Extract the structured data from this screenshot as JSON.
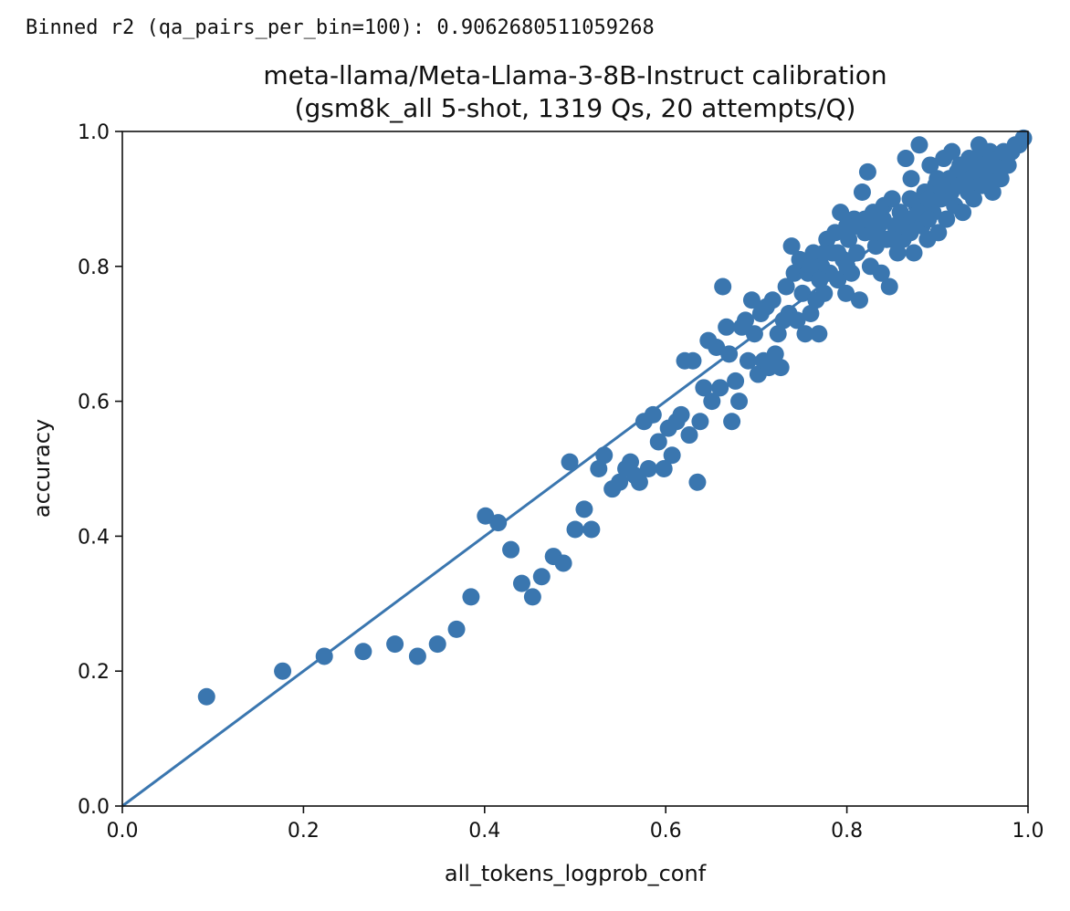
{
  "output": {
    "text": "Binned r2 (qa_pairs_per_bin=100): 0.9062680511059268"
  },
  "chart_data": {
    "type": "scatter",
    "title_line1": "meta-llama/Meta-Llama-3-8B-Instruct calibration",
    "title_line2": "(gsm8k_all 5-shot, 1319 Qs, 20 attempts/Q)",
    "xlabel": "all_tokens_logprob_conf",
    "ylabel": "accuracy",
    "xlim": [
      0.0,
      1.0
    ],
    "ylim": [
      0.0,
      1.0
    ],
    "xticks": [
      "0.0",
      "0.2",
      "0.4",
      "0.6",
      "0.8",
      "1.0"
    ],
    "yticks": [
      "0.0",
      "0.2",
      "0.4",
      "0.6",
      "0.8",
      "1.0"
    ],
    "grid": false,
    "color": "#3a76af",
    "reference_line": {
      "x": [
        0.0,
        1.0
      ],
      "y": [
        0.0,
        1.0
      ]
    },
    "points": [
      [
        0.093,
        0.162
      ],
      [
        0.177,
        0.2
      ],
      [
        0.223,
        0.222
      ],
      [
        0.266,
        0.229
      ],
      [
        0.301,
        0.24
      ],
      [
        0.326,
        0.222
      ],
      [
        0.348,
        0.24
      ],
      [
        0.369,
        0.262
      ],
      [
        0.385,
        0.31
      ],
      [
        0.401,
        0.43
      ],
      [
        0.415,
        0.42
      ],
      [
        0.429,
        0.38
      ],
      [
        0.441,
        0.33
      ],
      [
        0.453,
        0.31
      ],
      [
        0.463,
        0.34
      ],
      [
        0.476,
        0.37
      ],
      [
        0.487,
        0.36
      ],
      [
        0.494,
        0.51
      ],
      [
        0.5,
        0.41
      ],
      [
        0.51,
        0.44
      ],
      [
        0.518,
        0.41
      ],
      [
        0.526,
        0.5
      ],
      [
        0.532,
        0.52
      ],
      [
        0.541,
        0.47
      ],
      [
        0.549,
        0.48
      ],
      [
        0.556,
        0.5
      ],
      [
        0.561,
        0.51
      ],
      [
        0.566,
        0.49
      ],
      [
        0.571,
        0.48
      ],
      [
        0.576,
        0.57
      ],
      [
        0.581,
        0.5
      ],
      [
        0.586,
        0.58
      ],
      [
        0.592,
        0.54
      ],
      [
        0.598,
        0.5
      ],
      [
        0.603,
        0.56
      ],
      [
        0.607,
        0.52
      ],
      [
        0.612,
        0.57
      ],
      [
        0.617,
        0.58
      ],
      [
        0.621,
        0.66
      ],
      [
        0.626,
        0.55
      ],
      [
        0.63,
        0.66
      ],
      [
        0.635,
        0.48
      ],
      [
        0.638,
        0.57
      ],
      [
        0.642,
        0.62
      ],
      [
        0.647,
        0.69
      ],
      [
        0.651,
        0.6
      ],
      [
        0.656,
        0.68
      ],
      [
        0.66,
        0.62
      ],
      [
        0.663,
        0.77
      ],
      [
        0.667,
        0.71
      ],
      [
        0.67,
        0.67
      ],
      [
        0.673,
        0.57
      ],
      [
        0.677,
        0.63
      ],
      [
        0.681,
        0.6
      ],
      [
        0.684,
        0.71
      ],
      [
        0.688,
        0.72
      ],
      [
        0.691,
        0.66
      ],
      [
        0.695,
        0.75
      ],
      [
        0.698,
        0.7
      ],
      [
        0.702,
        0.64
      ],
      [
        0.705,
        0.73
      ],
      [
        0.708,
        0.66
      ],
      [
        0.711,
        0.74
      ],
      [
        0.714,
        0.65
      ],
      [
        0.718,
        0.75
      ],
      [
        0.721,
        0.67
      ],
      [
        0.724,
        0.7
      ],
      [
        0.727,
        0.65
      ],
      [
        0.73,
        0.72
      ],
      [
        0.733,
        0.77
      ],
      [
        0.736,
        0.73
      ],
      [
        0.739,
        0.83
      ],
      [
        0.742,
        0.79
      ],
      [
        0.745,
        0.72
      ],
      [
        0.748,
        0.81
      ],
      [
        0.751,
        0.76
      ],
      [
        0.754,
        0.7
      ],
      [
        0.757,
        0.79
      ],
      [
        0.76,
        0.73
      ],
      [
        0.763,
        0.82
      ],
      [
        0.766,
        0.75
      ],
      [
        0.769,
        0.7
      ],
      [
        0.772,
        0.8
      ],
      [
        0.775,
        0.76
      ],
      [
        0.778,
        0.84
      ],
      [
        0.781,
        0.79
      ],
      [
        0.784,
        0.82
      ],
      [
        0.787,
        0.85
      ],
      [
        0.79,
        0.78
      ],
      [
        0.793,
        0.88
      ],
      [
        0.796,
        0.81
      ],
      [
        0.799,
        0.76
      ],
      [
        0.802,
        0.84
      ],
      [
        0.805,
        0.79
      ],
      [
        0.808,
        0.87
      ],
      [
        0.811,
        0.82
      ],
      [
        0.814,
        0.75
      ],
      [
        0.817,
        0.91
      ],
      [
        0.82,
        0.85
      ],
      [
        0.823,
        0.94
      ],
      [
        0.826,
        0.8
      ],
      [
        0.829,
        0.88
      ],
      [
        0.832,
        0.83
      ],
      [
        0.835,
        0.86
      ],
      [
        0.838,
        0.79
      ],
      [
        0.841,
        0.89
      ],
      [
        0.844,
        0.84
      ],
      [
        0.847,
        0.77
      ],
      [
        0.85,
        0.9
      ],
      [
        0.853,
        0.86
      ],
      [
        0.856,
        0.82
      ],
      [
        0.859,
        0.88
      ],
      [
        0.862,
        0.84
      ],
      [
        0.865,
        0.96
      ],
      [
        0.868,
        0.87
      ],
      [
        0.871,
        0.93
      ],
      [
        0.874,
        0.82
      ],
      [
        0.877,
        0.89
      ],
      [
        0.88,
        0.98
      ],
      [
        0.883,
        0.86
      ],
      [
        0.886,
        0.91
      ],
      [
        0.889,
        0.84
      ],
      [
        0.892,
        0.95
      ],
      [
        0.895,
        0.88
      ],
      [
        0.898,
        0.92
      ],
      [
        0.901,
        0.85
      ],
      [
        0.904,
        0.9
      ],
      [
        0.907,
        0.96
      ],
      [
        0.91,
        0.87
      ],
      [
        0.913,
        0.93
      ],
      [
        0.916,
        0.97
      ],
      [
        0.919,
        0.89
      ],
      [
        0.922,
        0.94
      ],
      [
        0.925,
        0.92
      ],
      [
        0.928,
        0.88
      ],
      [
        0.931,
        0.95
      ],
      [
        0.934,
        0.91
      ],
      [
        0.937,
        0.93
      ],
      [
        0.94,
        0.9
      ],
      [
        0.943,
        0.96
      ],
      [
        0.946,
        0.98
      ],
      [
        0.949,
        0.92
      ],
      [
        0.952,
        0.95
      ],
      [
        0.955,
        0.93
      ],
      [
        0.958,
        0.97
      ],
      [
        0.961,
        0.91
      ],
      [
        0.964,
        0.94
      ],
      [
        0.967,
        0.96
      ],
      [
        0.97,
        0.93
      ],
      [
        0.973,
        0.97
      ],
      [
        0.978,
        0.95
      ],
      [
        0.982,
        0.97
      ],
      [
        0.986,
        0.98
      ],
      [
        0.99,
        0.98
      ],
      [
        0.995,
        0.99
      ],
      [
        0.76,
        0.8
      ],
      [
        0.77,
        0.78
      ],
      [
        0.79,
        0.82
      ],
      [
        0.8,
        0.8
      ],
      [
        0.81,
        0.86
      ],
      [
        0.83,
        0.85
      ],
      [
        0.84,
        0.87
      ],
      [
        0.86,
        0.86
      ],
      [
        0.87,
        0.9
      ],
      [
        0.88,
        0.88
      ],
      [
        0.89,
        0.9
      ],
      [
        0.9,
        0.93
      ],
      [
        0.915,
        0.91
      ],
      [
        0.925,
        0.95
      ],
      [
        0.945,
        0.94
      ],
      [
        0.96,
        0.95
      ],
      [
        0.8,
        0.86
      ],
      [
        0.85,
        0.84
      ],
      [
        0.82,
        0.87
      ],
      [
        0.87,
        0.85
      ],
      [
        0.89,
        0.87
      ],
      [
        0.905,
        0.92
      ],
      [
        0.935,
        0.96
      ],
      [
        0.95,
        0.92
      ],
      [
        0.775,
        0.82
      ]
    ]
  }
}
